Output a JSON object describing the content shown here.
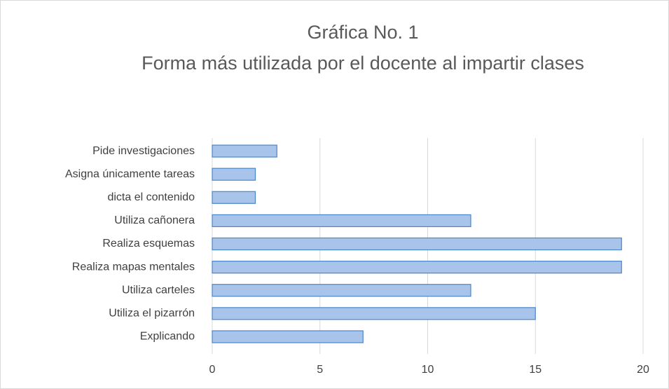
{
  "chart_data": {
    "type": "bar",
    "orientation": "horizontal",
    "title": "Gráfica No. 1",
    "subtitle": "Forma más utilizada por el docente  al impartir clases",
    "categories": [
      "Explicando",
      "Utiliza el pizarrón",
      "Utiliza carteles",
      "Realiza mapas mentales",
      "Realiza esquemas",
      "Utiliza cañonera",
      "dicta el contenido",
      "Asigna únicamente tareas",
      "Pide investigaciones"
    ],
    "values": [
      7,
      15,
      12,
      19,
      19,
      12,
      2,
      2,
      3
    ],
    "color": "#a9c4eb",
    "xlim": [
      0,
      20
    ],
    "xticks": [
      0,
      5,
      10,
      15,
      20
    ],
    "grid": true
  }
}
